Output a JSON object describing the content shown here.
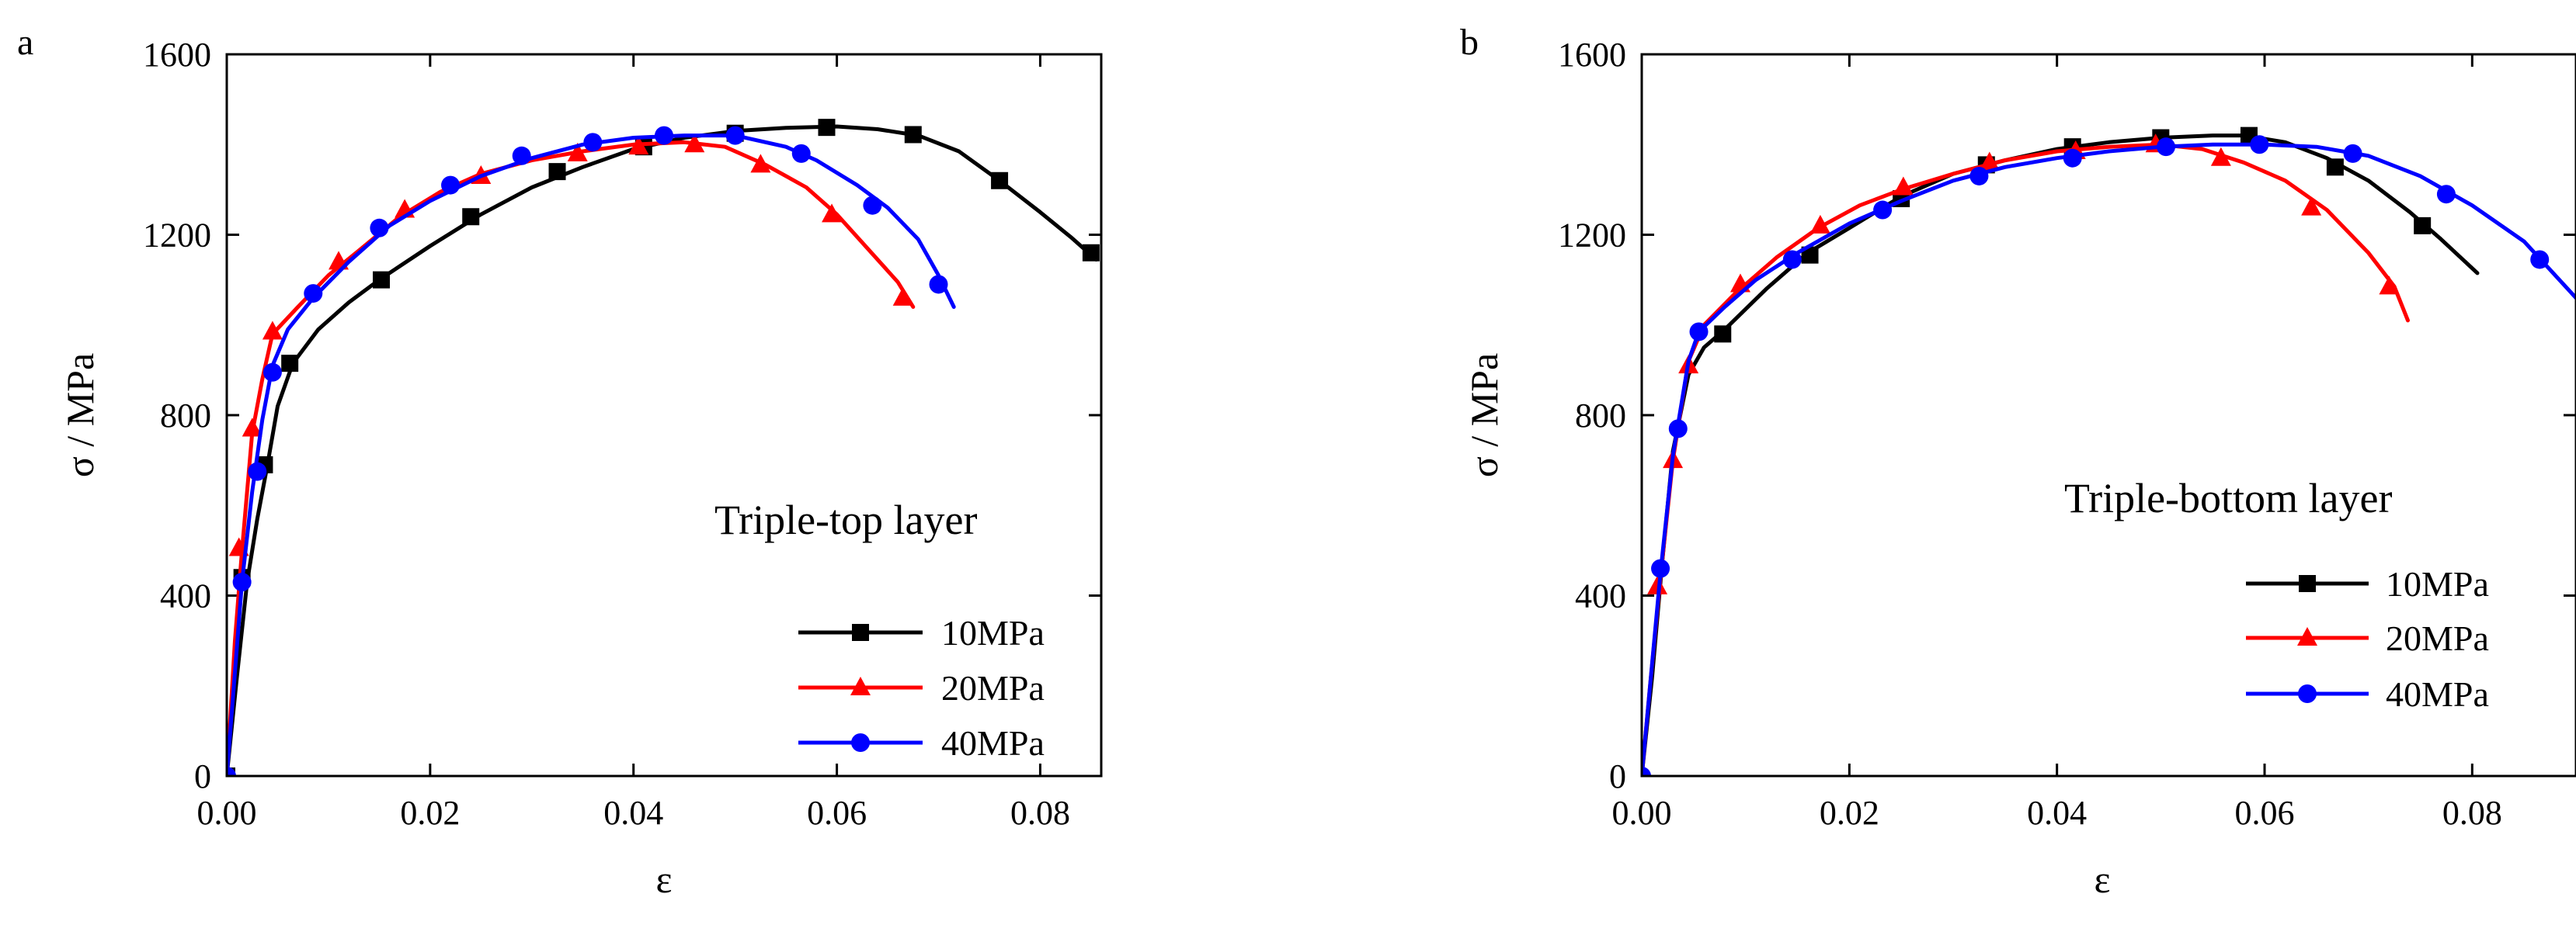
{
  "chart_data": [
    {
      "type": "line",
      "panel_label": "a",
      "xlabel": "ε",
      "ylabel": "σ / MPa",
      "xlim": [
        0,
        0.086
      ],
      "ylim": [
        0,
        1600
      ],
      "xticks": [
        0.0,
        0.02,
        0.04,
        0.06,
        0.08
      ],
      "xtick_labels": [
        "0.00",
        "0.02",
        "0.04",
        "0.06",
        "0.08"
      ],
      "yticks": [
        0,
        400,
        800,
        1200,
        1600
      ],
      "ytick_labels": [
        "0",
        "400",
        "800",
        "1200",
        "1600"
      ],
      "legend_title": "Triple-top layer",
      "legend_position": "bottom-right",
      "series": [
        {
          "name": "10MPa",
          "color": "#000000",
          "marker": "square",
          "curve": [
            [
              0,
              0
            ],
            [
              0.001,
              220
            ],
            [
              0.002,
              430
            ],
            [
              0.003,
              570
            ],
            [
              0.004,
              690
            ],
            [
              0.005,
              820
            ],
            [
              0.0065,
              915
            ],
            [
              0.009,
              990
            ],
            [
              0.012,
              1050
            ],
            [
              0.015,
              1100
            ],
            [
              0.02,
              1175
            ],
            [
              0.025,
              1245
            ],
            [
              0.03,
              1305
            ],
            [
              0.035,
              1350
            ],
            [
              0.04,
              1390
            ],
            [
              0.045,
              1415
            ],
            [
              0.05,
              1430
            ],
            [
              0.055,
              1437
            ],
            [
              0.06,
              1440
            ],
            [
              0.064,
              1434
            ],
            [
              0.068,
              1420
            ],
            [
              0.072,
              1385
            ],
            [
              0.076,
              1320
            ],
            [
              0.08,
              1250
            ],
            [
              0.083,
              1195
            ],
            [
              0.0855,
              1145
            ]
          ],
          "markers": [
            [
              0,
              0
            ],
            [
              0.0015,
              440
            ],
            [
              0.0037,
              690
            ],
            [
              0.0062,
              915
            ],
            [
              0.0152,
              1100
            ],
            [
              0.024,
              1240
            ],
            [
              0.0325,
              1340
            ],
            [
              0.041,
              1395
            ],
            [
              0.05,
              1425
            ],
            [
              0.059,
              1438
            ],
            [
              0.0675,
              1422
            ],
            [
              0.076,
              1320
            ],
            [
              0.085,
              1160
            ]
          ]
        },
        {
          "name": "20MPa",
          "color": "#ff0000",
          "marker": "triangle",
          "curve": [
            [
              0,
              0
            ],
            [
              0.0008,
              300
            ],
            [
              0.0015,
              500
            ],
            [
              0.0025,
              760
            ],
            [
              0.0035,
              880
            ],
            [
              0.0045,
              980
            ],
            [
              0.007,
              1040
            ],
            [
              0.01,
              1110
            ],
            [
              0.013,
              1165
            ],
            [
              0.017,
              1240
            ],
            [
              0.021,
              1295
            ],
            [
              0.025,
              1335
            ],
            [
              0.03,
              1365
            ],
            [
              0.035,
              1385
            ],
            [
              0.04,
              1400
            ],
            [
              0.045,
              1405
            ],
            [
              0.049,
              1395
            ],
            [
              0.053,
              1355
            ],
            [
              0.057,
              1305
            ],
            [
              0.06,
              1245
            ],
            [
              0.063,
              1170
            ],
            [
              0.066,
              1095
            ],
            [
              0.0675,
              1040
            ]
          ],
          "markers": [
            [
              0.0012,
              505
            ],
            [
              0.0025,
              770
            ],
            [
              0.0045,
              985
            ],
            [
              0.011,
              1140
            ],
            [
              0.0175,
              1255
            ],
            [
              0.025,
              1330
            ],
            [
              0.0345,
              1380
            ],
            [
              0.0405,
              1395
            ],
            [
              0.046,
              1400
            ],
            [
              0.0525,
              1355
            ],
            [
              0.0595,
              1245
            ],
            [
              0.0665,
              1060
            ]
          ]
        },
        {
          "name": "40MPa",
          "color": "#0000ff",
          "marker": "circle",
          "curve": [
            [
              0,
              0
            ],
            [
              0.0008,
              230
            ],
            [
              0.0015,
              430
            ],
            [
              0.0025,
              630
            ],
            [
              0.0035,
              790
            ],
            [
              0.0045,
              910
            ],
            [
              0.006,
              990
            ],
            [
              0.0085,
              1060
            ],
            [
              0.012,
              1140
            ],
            [
              0.016,
              1220
            ],
            [
              0.02,
              1275
            ],
            [
              0.025,
              1330
            ],
            [
              0.03,
              1370
            ],
            [
              0.035,
              1400
            ],
            [
              0.04,
              1415
            ],
            [
              0.045,
              1420
            ],
            [
              0.05,
              1420
            ],
            [
              0.055,
              1395
            ],
            [
              0.058,
              1365
            ],
            [
              0.062,
              1310
            ],
            [
              0.065,
              1260
            ],
            [
              0.068,
              1190
            ],
            [
              0.07,
              1110
            ],
            [
              0.0715,
              1040
            ]
          ],
          "markers": [
            [
              0,
              0
            ],
            [
              0.0015,
              430
            ],
            [
              0.003,
              675
            ],
            [
              0.0045,
              895
            ],
            [
              0.0085,
              1070
            ],
            [
              0.015,
              1215
            ],
            [
              0.022,
              1310
            ],
            [
              0.029,
              1375
            ],
            [
              0.036,
              1405
            ],
            [
              0.043,
              1420
            ],
            [
              0.05,
              1420
            ],
            [
              0.0565,
              1380
            ],
            [
              0.0635,
              1265
            ],
            [
              0.07,
              1090
            ]
          ]
        }
      ]
    },
    {
      "type": "line",
      "panel_label": "b",
      "xlabel": "ε",
      "ylabel": "σ / MPa",
      "xlim": [
        0,
        0.09
      ],
      "ylim": [
        0,
        1600
      ],
      "xticks": [
        0.0,
        0.02,
        0.04,
        0.06,
        0.08
      ],
      "xtick_labels": [
        "0.00",
        "0.02",
        "0.04",
        "0.06",
        "0.08"
      ],
      "yticks": [
        0,
        400,
        800,
        1200,
        1600
      ],
      "ytick_labels": [
        "0",
        "400",
        "800",
        "1200",
        "1600"
      ],
      "legend_title": "Triple-bottom layer",
      "legend_position": "bottom-right",
      "series": [
        {
          "name": "10MPa",
          "color": "#000000",
          "marker": "square",
          "curve": [
            [
              0,
              0
            ],
            [
              0.001,
              220
            ],
            [
              0.002,
              480
            ],
            [
              0.003,
              720
            ],
            [
              0.0045,
              890
            ],
            [
              0.006,
              950
            ],
            [
              0.008,
              990
            ],
            [
              0.012,
              1080
            ],
            [
              0.016,
              1160
            ],
            [
              0.02,
              1215
            ],
            [
              0.025,
              1285
            ],
            [
              0.03,
              1335
            ],
            [
              0.035,
              1365
            ],
            [
              0.04,
              1390
            ],
            [
              0.045,
              1405
            ],
            [
              0.05,
              1415
            ],
            [
              0.055,
              1420
            ],
            [
              0.058,
              1420
            ],
            [
              0.062,
              1405
            ],
            [
              0.066,
              1370
            ],
            [
              0.07,
              1320
            ],
            [
              0.074,
              1250
            ],
            [
              0.077,
              1190
            ],
            [
              0.0805,
              1115
            ]
          ],
          "markers": [
            [
              0.0078,
              980
            ],
            [
              0.0162,
              1155
            ],
            [
              0.025,
              1280
            ],
            [
              0.0332,
              1355
            ],
            [
              0.0415,
              1395
            ],
            [
              0.05,
              1415
            ],
            [
              0.0585,
              1420
            ],
            [
              0.0668,
              1350
            ],
            [
              0.0752,
              1220
            ]
          ]
        },
        {
          "name": "20MPa",
          "color": "#ff0000",
          "marker": "triangle",
          "curve": [
            [
              0,
              0
            ],
            [
              0.0008,
              200
            ],
            [
              0.0018,
              440
            ],
            [
              0.003,
              700
            ],
            [
              0.0045,
              920
            ],
            [
              0.006,
              1000
            ],
            [
              0.009,
              1070
            ],
            [
              0.013,
              1150
            ],
            [
              0.017,
              1215
            ],
            [
              0.021,
              1265
            ],
            [
              0.025,
              1300
            ],
            [
              0.03,
              1335
            ],
            [
              0.035,
              1365
            ],
            [
              0.04,
              1385
            ],
            [
              0.045,
              1395
            ],
            [
              0.05,
              1400
            ],
            [
              0.054,
              1390
            ],
            [
              0.058,
              1360
            ],
            [
              0.062,
              1320
            ],
            [
              0.066,
              1255
            ],
            [
              0.07,
              1160
            ],
            [
              0.0725,
              1085
            ],
            [
              0.0738,
              1010
            ]
          ],
          "markers": [
            [
              0.0015,
              420
            ],
            [
              0.003,
              700
            ],
            [
              0.0045,
              910
            ],
            [
              0.0095,
              1090
            ],
            [
              0.0172,
              1220
            ],
            [
              0.0252,
              1305
            ],
            [
              0.0335,
              1360
            ],
            [
              0.0418,
              1385
            ],
            [
              0.0495,
              1400
            ],
            [
              0.0558,
              1370
            ],
            [
              0.0645,
              1260
            ],
            [
              0.072,
              1085
            ]
          ]
        },
        {
          "name": "40MPa",
          "color": "#0000ff",
          "marker": "circle",
          "curve": [
            [
              0,
              0
            ],
            [
              0.0008,
              200
            ],
            [
              0.0018,
              450
            ],
            [
              0.003,
              710
            ],
            [
              0.0045,
              920
            ],
            [
              0.0055,
              985
            ],
            [
              0.008,
              1040
            ],
            [
              0.011,
              1100
            ],
            [
              0.015,
              1160
            ],
            [
              0.02,
              1225
            ],
            [
              0.025,
              1275
            ],
            [
              0.03,
              1320
            ],
            [
              0.035,
              1350
            ],
            [
              0.04,
              1370
            ],
            [
              0.045,
              1385
            ],
            [
              0.05,
              1395
            ],
            [
              0.055,
              1400
            ],
            [
              0.06,
              1400
            ],
            [
              0.065,
              1395
            ],
            [
              0.07,
              1375
            ],
            [
              0.075,
              1330
            ],
            [
              0.08,
              1265
            ],
            [
              0.085,
              1185
            ],
            [
              0.09,
              1060
            ]
          ],
          "markers": [
            [
              0,
              0
            ],
            [
              0.0018,
              460
            ],
            [
              0.0035,
              770
            ],
            [
              0.0055,
              985
            ],
            [
              0.0145,
              1145
            ],
            [
              0.0232,
              1255
            ],
            [
              0.0325,
              1330
            ],
            [
              0.0415,
              1370
            ],
            [
              0.0505,
              1395
            ],
            [
              0.0595,
              1400
            ],
            [
              0.0685,
              1380
            ],
            [
              0.0775,
              1290
            ],
            [
              0.0865,
              1145
            ]
          ]
        }
      ]
    }
  ]
}
